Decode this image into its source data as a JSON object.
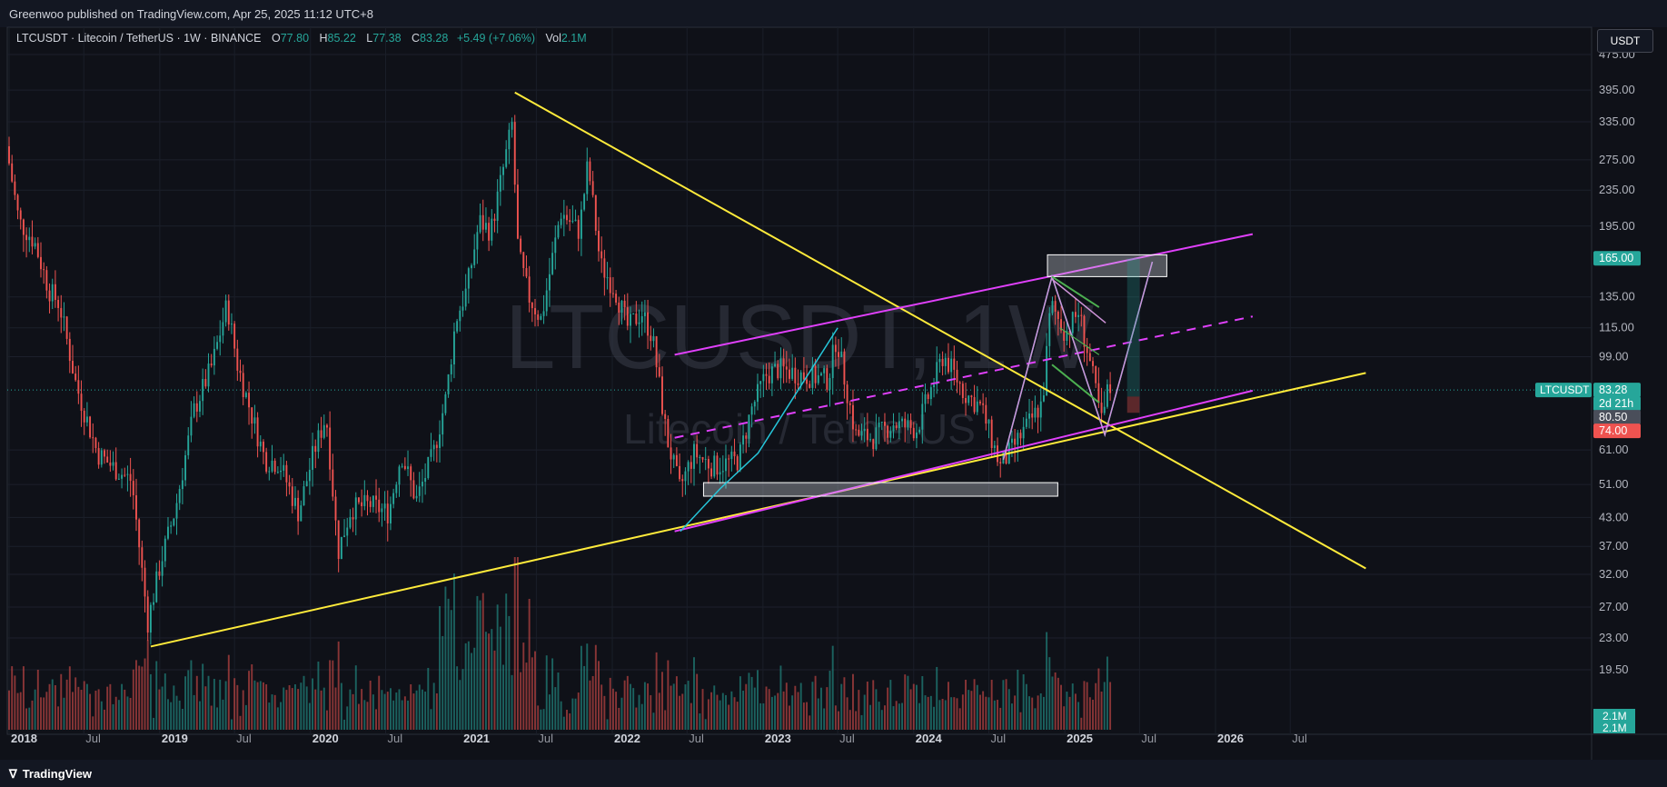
{
  "header": {
    "published": "Greenwoo published on TradingView.com, Apr 25, 2025 11:12 UTC+8"
  },
  "legend": {
    "symbol": "LTCUSDT · Litecoin / TetherUS · 1W · BINANCE",
    "open_label": "O",
    "open": "77.80",
    "high_label": "H",
    "high": "85.22",
    "low_label": "L",
    "low": "77.38",
    "close_label": "C",
    "close": "83.28",
    "change": "+5.49 (+7.06%)",
    "vol_label": "Vol",
    "vol": "2.1M"
  },
  "currency": "USDT",
  "watermark": {
    "main": "LTCUSDT, 1W",
    "sub": "Litecoin / TetherUS"
  },
  "footer": {
    "brand": "TradingView",
    "brand_icon": "tradingview-logo-icon"
  },
  "colors": {
    "background": "#0f1118",
    "up": "#26a69a",
    "down": "#ef5350",
    "trendline_yellow": "#ffeb3b",
    "channel_magenta": "#e040fb",
    "cyan_path": "#26c6da",
    "violet_path": "#ce93d8",
    "green_flag": "#4caf50",
    "zone_fill": "#d1d4dc"
  },
  "chart_data": {
    "type": "candlestick",
    "symbol": "LTCUSDT",
    "interval": "1W",
    "y_scale": "log",
    "y_ticks": [
      "475.00",
      "395.00",
      "335.00",
      "275.00",
      "235.00",
      "195.00",
      "165.00",
      "135.00",
      "115.00",
      "99.00",
      "83.28",
      "80.50",
      "74.00",
      "61.00",
      "51.00",
      "43.00",
      "37.00",
      "32.00",
      "27.00",
      "23.00",
      "19.50"
    ],
    "x_ticks": [
      "2018",
      "Jul",
      "2019",
      "Jul",
      "2020",
      "Jul",
      "2021",
      "Jul",
      "2022",
      "Jul",
      "2023",
      "Jul",
      "2024",
      "Jul",
      "2025",
      "Jul",
      "2026",
      "Jul"
    ],
    "price_labels": [
      {
        "text": "165.00",
        "kind": "level",
        "value": 165
      },
      {
        "text": "83.28",
        "kind": "last",
        "value": 83.28
      },
      {
        "text": "2d 21h",
        "kind": "countdown",
        "value": 83.28
      },
      {
        "text": "80.50",
        "kind": "entry",
        "value": 80.5
      },
      {
        "text": "74.00",
        "kind": "stop",
        "value": 74
      }
    ],
    "last_price_tag": "LTCUSDT",
    "volume_labels": [
      "2.1M",
      "2.1M"
    ],
    "ohlc_last": {
      "open": 77.8,
      "high": 85.22,
      "low": 77.38,
      "close": 83.28,
      "change": 5.49,
      "change_pct": 7.06,
      "volume": "2.1M"
    },
    "price_path": [
      [
        "2018-01-01",
        295
      ],
      [
        "2018-02-01",
        200
      ],
      [
        "2018-03-10",
        180
      ],
      [
        "2018-04-15",
        140
      ],
      [
        "2018-05-10",
        130
      ],
      [
        "2018-06-20",
        85
      ],
      [
        "2018-08-10",
        60
      ],
      [
        "2018-09-15",
        56
      ],
      [
        "2018-11-01",
        52
      ],
      [
        "2018-12-10",
        25
      ],
      [
        "2019-01-10",
        34
      ],
      [
        "2019-02-15",
        45
      ],
      [
        "2019-04-01",
        75
      ],
      [
        "2019-05-15",
        95
      ],
      [
        "2019-06-20",
        130
      ],
      [
        "2019-07-15",
        95
      ],
      [
        "2019-08-15",
        75
      ],
      [
        "2019-09-20",
        58
      ],
      [
        "2019-10-25",
        57
      ],
      [
        "2019-12-10",
        44
      ],
      [
        "2020-01-15",
        60
      ],
      [
        "2020-02-15",
        73
      ],
      [
        "2020-03-15",
        36
      ],
      [
        "2020-04-15",
        45
      ],
      [
        "2020-06-01",
        46
      ],
      [
        "2020-07-15",
        44
      ],
      [
        "2020-08-15",
        60
      ],
      [
        "2020-09-20",
        47
      ],
      [
        "2020-11-01",
        60
      ],
      [
        "2020-12-01",
        80
      ],
      [
        "2020-12-25",
        120
      ],
      [
        "2021-01-20",
        140
      ],
      [
        "2021-02-20",
        200
      ],
      [
        "2021-03-20",
        190
      ],
      [
        "2021-05-10",
        330
      ],
      [
        "2021-05-25",
        170
      ],
      [
        "2021-06-20",
        135
      ],
      [
        "2021-07-20",
        120
      ],
      [
        "2021-09-05",
        210
      ],
      [
        "2021-10-20",
        190
      ],
      [
        "2021-11-10",
        270
      ],
      [
        "2021-12-10",
        160
      ],
      [
        "2022-01-15",
        140
      ],
      [
        "2022-02-15",
        115
      ],
      [
        "2022-03-20",
        125
      ],
      [
        "2022-04-15",
        110
      ],
      [
        "2022-05-20",
        65
      ],
      [
        "2022-06-20",
        50
      ],
      [
        "2022-07-25",
        60
      ],
      [
        "2022-09-10",
        56
      ],
      [
        "2022-11-10",
        58
      ],
      [
        "2022-12-10",
        75
      ],
      [
        "2023-01-15",
        90
      ],
      [
        "2023-02-15",
        93
      ],
      [
        "2023-04-15",
        90
      ],
      [
        "2023-06-15",
        88
      ],
      [
        "2023-07-05",
        110
      ],
      [
        "2023-08-20",
        66
      ],
      [
        "2023-10-01",
        65
      ],
      [
        "2023-11-20",
        70
      ],
      [
        "2024-01-15",
        68
      ],
      [
        "2024-03-20",
        100
      ],
      [
        "2024-05-10",
        82
      ],
      [
        "2024-06-20",
        76
      ],
      [
        "2024-08-05",
        56
      ],
      [
        "2024-09-20",
        65
      ],
      [
        "2024-11-15",
        78
      ],
      [
        "2024-12-05",
        130
      ],
      [
        "2025-01-10",
        112
      ],
      [
        "2025-02-10",
        125
      ],
      [
        "2025-03-10",
        96
      ],
      [
        "2025-04-08",
        70
      ],
      [
        "2025-04-22",
        83.28
      ]
    ],
    "drawings": [
      {
        "name": "yellow-upper-trendline",
        "kind": "line",
        "color": "yellow",
        "from": [
          "2021-05-10",
          390
        ],
        "to": [
          "2026-12-31",
          33
        ]
      },
      {
        "name": "yellow-lower-trendline",
        "kind": "line",
        "color": "yellow",
        "from": [
          "2018-12-10",
          22
        ],
        "to": [
          "2026-12-31",
          91
        ]
      },
      {
        "name": "magenta-channel-top",
        "kind": "line",
        "color": "magenta",
        "from": [
          "2022-06-01",
          100
        ],
        "to": [
          "2026-04-01",
          187
        ]
      },
      {
        "name": "magenta-channel-mid",
        "kind": "dashed",
        "color": "magenta",
        "from": [
          "2022-06-01",
          65
        ],
        "to": [
          "2026-04-01",
          122
        ]
      },
      {
        "name": "magenta-channel-bottom",
        "kind": "line",
        "color": "magenta",
        "from": [
          "2022-06-01",
          40
        ],
        "to": [
          "2026-04-01",
          83
        ]
      },
      {
        "name": "resistance-zone",
        "kind": "box",
        "from": [
          "2024-11-20",
          150
        ],
        "to": [
          "2025-09-05",
          168
        ]
      },
      {
        "name": "support-zone",
        "kind": "box",
        "from": [
          "2022-08-10",
          48
        ],
        "to": [
          "2024-12-15",
          51.5
        ]
      }
    ]
  }
}
